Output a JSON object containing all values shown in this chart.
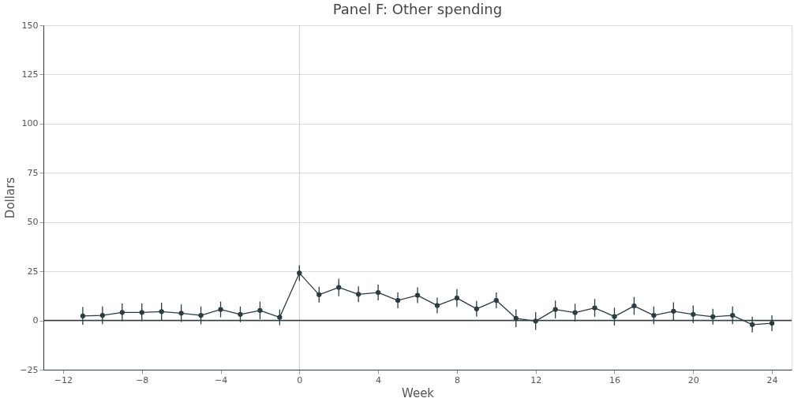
{
  "chart_data": {
    "type": "line",
    "title": "Panel F: Other spending",
    "xlabel": "Week",
    "ylabel": "Dollars",
    "x": [
      -11,
      -10,
      -9,
      -8,
      -7,
      -6,
      -5,
      -4,
      -3,
      -2,
      -1,
      0,
      1,
      2,
      3,
      4,
      5,
      6,
      7,
      8,
      9,
      10,
      11,
      12,
      13,
      14,
      15,
      16,
      17,
      18,
      19,
      20,
      21,
      22,
      23,
      24
    ],
    "series": [
      {
        "color": "#2b3d40",
        "values": [
          2.3,
          2.6,
          4.1,
          4.1,
          4.5,
          3.7,
          2.6,
          5.6,
          3.1,
          5.1,
          1.6,
          24.1,
          13.1,
          16.8,
          13.3,
          14.2,
          10.2,
          12.8,
          7.6,
          11.4,
          5.9,
          10.2,
          1.1,
          -0.3,
          5.6,
          4.0,
          6.4,
          2.0,
          7.4,
          2.6,
          4.7,
          3.1,
          1.9,
          2.6,
          -2.1,
          -1.4
        ],
        "errors": [
          4.5,
          4.5,
          4.5,
          4.5,
          4.5,
          4.5,
          4.5,
          4,
          4,
          4.5,
          4,
          4,
          4,
          4.5,
          4,
          4,
          4,
          4,
          4,
          4.5,
          4,
          4,
          4.5,
          4.5,
          4.5,
          4.5,
          4.5,
          4.5,
          4.5,
          4.5,
          4.5,
          4.5,
          4,
          4.5,
          4,
          4
        ]
      }
    ],
    "xlim": [
      -13,
      25
    ],
    "xticks": [
      -12,
      -8,
      -4,
      0,
      4,
      8,
      12,
      16,
      20,
      24
    ],
    "ylim": [
      -25,
      150
    ],
    "yticks": [
      -25,
      0,
      25,
      50,
      75,
      100,
      125,
      150
    ],
    "ref_lines": [
      {
        "axis": "x",
        "value": 0,
        "color": "#cccccc"
      },
      {
        "axis": "y",
        "value": 0,
        "color": "#2b3d40"
      }
    ],
    "grid": "y",
    "marker": "circle",
    "line_style": "solid"
  }
}
